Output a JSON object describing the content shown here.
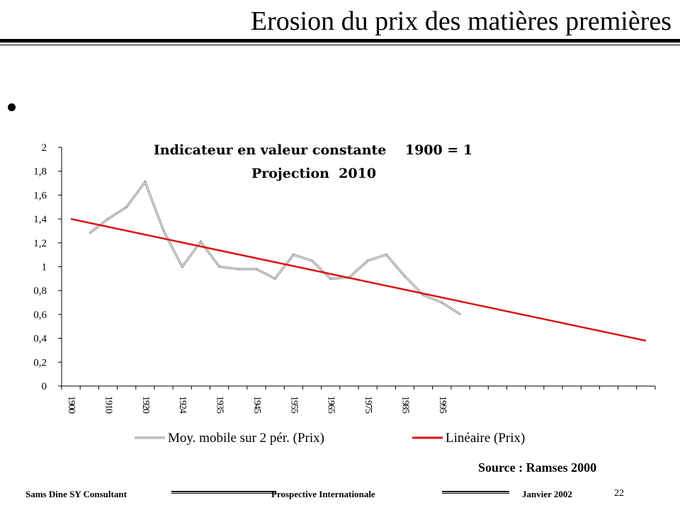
{
  "slide": {
    "title": "Erosion du prix des matières premières",
    "bullet": "",
    "source": "Source : Ramses 2000",
    "footer": {
      "left": "Sams Dine SY Consultant",
      "center": "Prospective Internationale",
      "date": "Janvier 2002",
      "page": "22"
    }
  },
  "chart_data": {
    "type": "line",
    "title": "Indicateur en valeur constante    1900 = 1",
    "subtitle": "Projection  2010",
    "xlabel": "",
    "ylabel": "",
    "ylim": [
      0,
      2
    ],
    "yticks": [
      "0",
      "0,2",
      "0,4",
      "0,6",
      "0,8",
      "1",
      "1,2",
      "1,4",
      "1,6",
      "1,8",
      "2"
    ],
    "categories": [
      "1900",
      "",
      "1910",
      "",
      "1920",
      "",
      "1924",
      "",
      "1935",
      "",
      "1945",
      "",
      "1955",
      "",
      "1965",
      "",
      "1975",
      "",
      "1985",
      "",
      "1995",
      "",
      "",
      "",
      "",
      "",
      "",
      "",
      "",
      "",
      "",
      ""
    ],
    "series": [
      {
        "name": "Moy. mobile sur 2 pér. (Prix)",
        "color": "#555555",
        "values": [
          null,
          1.28,
          1.4,
          1.5,
          1.71,
          1.3,
          1.0,
          1.21,
          1.0,
          0.98,
          0.98,
          0.9,
          1.1,
          1.05,
          0.9,
          0.91,
          1.05,
          1.1,
          0.92,
          0.76,
          0.7,
          0.6,
          null,
          null,
          null,
          null,
          null,
          null,
          null,
          null,
          null,
          null
        ]
      },
      {
        "name": "Linéaire (Prix)",
        "color": "#dd1111",
        "values": [
          1.4,
          null,
          null,
          null,
          null,
          null,
          null,
          null,
          null,
          null,
          null,
          null,
          null,
          null,
          null,
          null,
          null,
          null,
          null,
          null,
          null,
          null,
          null,
          null,
          null,
          null,
          null,
          null,
          null,
          null,
          null,
          0.38
        ]
      }
    ],
    "grid": false,
    "legend": "bottom"
  }
}
